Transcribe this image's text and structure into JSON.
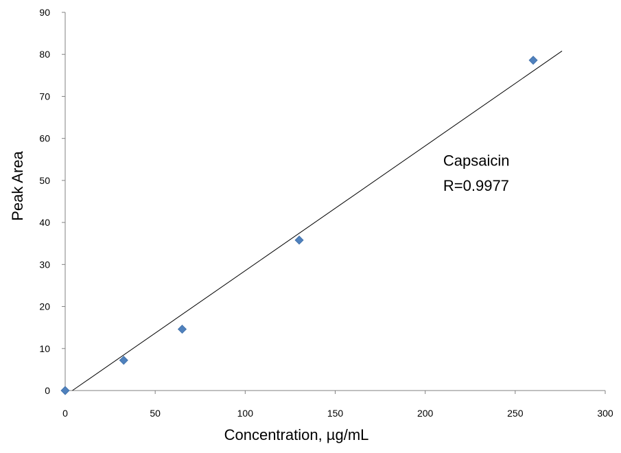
{
  "chart_data": {
    "type": "scatter",
    "title": "",
    "xlabel": "Concentration, µg/mL",
    "ylabel": "Peak Area",
    "xlim": [
      0,
      300
    ],
    "ylim": [
      0,
      90
    ],
    "xticks": [
      0,
      50,
      100,
      150,
      200,
      250,
      300
    ],
    "yticks": [
      0,
      10,
      20,
      30,
      40,
      50,
      60,
      70,
      80,
      90
    ],
    "grid": false,
    "legend": "none",
    "series": [
      {
        "marker": "diamond",
        "color": "#4F81BD",
        "x": [
          0,
          32.5,
          65,
          130,
          260
        ],
        "y": [
          0,
          7.2,
          14.6,
          35.8,
          78.6
        ]
      }
    ],
    "trendline": {
      "type": "linear",
      "color": "#000000",
      "x": [
        4,
        276
      ],
      "y": [
        0,
        80.8
      ]
    },
    "annotations": [
      {
        "text": "Capsaicin",
        "x": 210,
        "y": 53.5
      },
      {
        "text": "R=0.9977",
        "x": 210,
        "y": 47.5
      }
    ]
  }
}
